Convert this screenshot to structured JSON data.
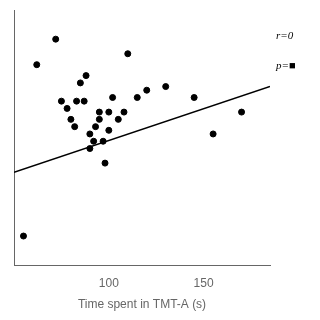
{
  "chart_data": {
    "type": "scatter",
    "x_label": "Time spent in TMT-A (s)",
    "series": [
      {
        "type": "scatter",
        "color": "#000000",
        "x": [
          55,
          72,
          80,
          82,
          85,
          87,
          90,
          90,
          93,
          95,
          95,
          97,
          98,
          100,
          100,
          102,
          105,
          108,
          115,
          120,
          130,
          145,
          155,
          170,
          62,
          75,
          78,
          83,
          88,
          92,
          110
        ],
        "values": [
          0.18,
          0.72,
          0.5,
          0.48,
          0.6,
          0.55,
          0.46,
          0.42,
          0.48,
          0.5,
          0.52,
          0.44,
          0.38,
          0.47,
          0.52,
          0.56,
          0.5,
          0.52,
          0.56,
          0.58,
          0.59,
          0.56,
          0.46,
          0.52,
          0.65,
          0.55,
          0.53,
          0.55,
          0.62,
          0.44,
          0.68
        ]
      },
      {
        "type": "line",
        "color": "#000000",
        "x": [
          50,
          185
        ],
        "values": [
          0.355,
          0.59
        ]
      }
    ],
    "xlim": [
      50,
      185
    ],
    "ylim": [
      0.1,
      0.8
    ],
    "xticks": [
      100,
      150
    ],
    "tick_labels": "x",
    "grid": false,
    "annotations": [
      "r=0",
      "p=■"
    ]
  }
}
